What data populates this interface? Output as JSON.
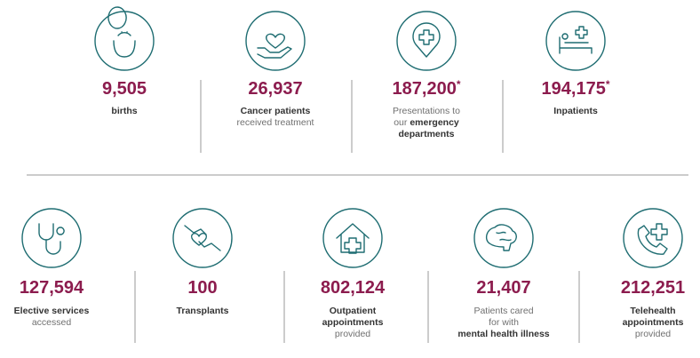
{
  "stats": {
    "top": [
      {
        "number": "9,505",
        "label": [
          [
            {
              "text": "births",
              "bold": true
            }
          ]
        ]
      },
      {
        "number": "26,937",
        "label": [
          [
            {
              "text": "Cancer patients",
              "bold": true
            }
          ],
          [
            {
              "text": "received treatment",
              "bold": false
            }
          ]
        ]
      },
      {
        "number": "187,200",
        "note": "*",
        "label": [
          [
            {
              "text": "Presentations to",
              "bold": false
            }
          ],
          [
            {
              "text": "our ",
              "bold": false
            },
            {
              "text": "emergency",
              "bold": true
            }
          ],
          [
            {
              "text": "departments",
              "bold": true
            }
          ]
        ]
      },
      {
        "number": "194,175",
        "note": "*",
        "label": [
          [
            {
              "text": "Inpatients",
              "bold": true
            }
          ]
        ]
      }
    ],
    "bottom": [
      {
        "number": "127,594",
        "label": [
          [
            {
              "text": "Elective services",
              "bold": true
            }
          ],
          [
            {
              "text": "accessed",
              "bold": false
            }
          ]
        ]
      },
      {
        "number": "100",
        "label": [
          [
            {
              "text": "Transplants",
              "bold": true
            }
          ]
        ]
      },
      {
        "number": "802,124",
        "label": [
          [
            {
              "text": "Outpatient",
              "bold": true
            }
          ],
          [
            {
              "text": "appointments",
              "bold": true
            }
          ],
          [
            {
              "text": "provided",
              "bold": false
            }
          ]
        ]
      },
      {
        "number": "21,407",
        "label": [
          [
            {
              "text": "Patients cared",
              "bold": false
            }
          ],
          [
            {
              "text": "for with",
              "bold": false
            }
          ],
          [
            {
              "text": "mental health illness",
              "bold": true
            }
          ]
        ]
      },
      {
        "number": "212,251",
        "label": [
          [
            {
              "text": "Telehealth",
              "bold": true
            }
          ],
          [
            {
              "text": "appointments",
              "bold": true
            }
          ],
          [
            {
              "text": "provided",
              "bold": false
            }
          ]
        ]
      }
    ]
  }
}
